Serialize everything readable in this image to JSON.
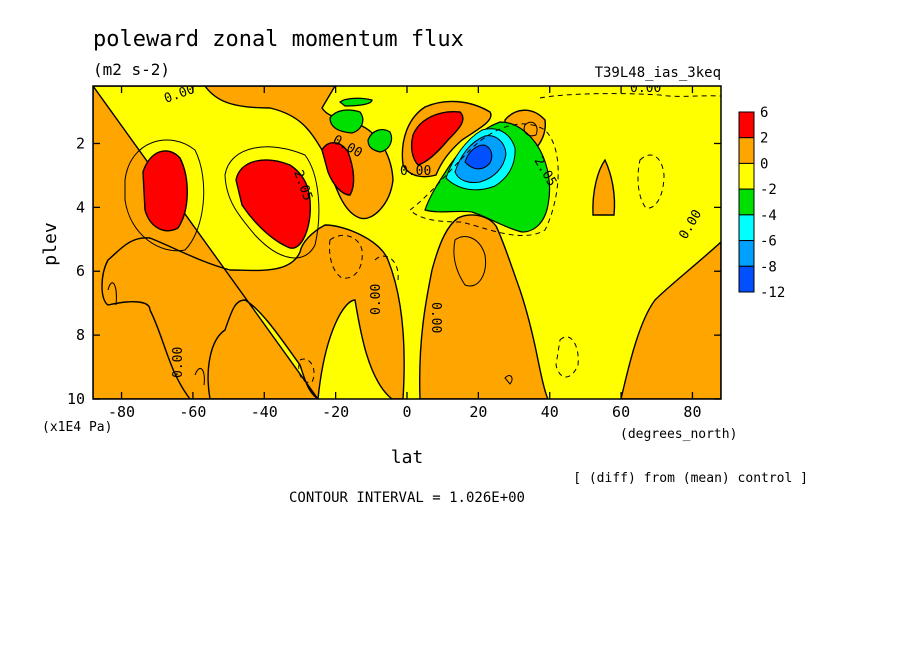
{
  "chart_data": {
    "type": "contour",
    "title": "poleward zonal momentum flux",
    "units": "(m2 s-2)",
    "run_label": "T39L48_ias_3keq",
    "xlabel": "lat",
    "xunits": "(degrees_north)",
    "ylabel": "plev",
    "yunits": "(x1E4 Pa)",
    "xlim": [
      -88,
      88
    ],
    "ylim": [
      10,
      0.2
    ],
    "xticks": [
      -80,
      -60,
      -40,
      -20,
      0,
      20,
      40,
      60,
      80
    ],
    "yticks": [
      2,
      4,
      6,
      8,
      10
    ],
    "subtitle": "[ (diff) from (mean) control ]",
    "contour_interval": "CONTOUR INTERVAL = 1.026E+00",
    "contour_labels": [
      "0.00",
      "0.00",
      "0.00",
      "0.00",
      "0.00",
      "0.00",
      "0.00",
      "0.00",
      "2.05",
      "2.05"
    ],
    "colorbar": {
      "levels": [
        "6",
        "2",
        "0",
        "-2",
        "-4",
        "-6",
        "-8",
        "-12"
      ],
      "colors": [
        "#ff0000",
        "#ffa500",
        "#ffff00",
        "#00e000",
        "#00ffff",
        "#00a0ff",
        "#0050ff"
      ]
    },
    "palette": {
      "positive_weak": "#ffa500",
      "positive_strong": "#ff0000",
      "near_zero": "#ffff00",
      "negative_weak": "#00e000",
      "negative_mid": "#00ffff",
      "negative_strong": "#00a0ff",
      "negative_max": "#0050ff"
    },
    "features": [
      {
        "type": "max",
        "lat": -68,
        "plev": 3.0,
        "value": 2.5
      },
      {
        "type": "max",
        "lat": -36,
        "plev": 3.7,
        "value": 2.8
      },
      {
        "type": "max",
        "lat": -18,
        "plev": 2.5,
        "value": 2.3
      },
      {
        "type": "max",
        "lat": 5,
        "plev": 1.9,
        "value": 2.6
      },
      {
        "type": "min",
        "lat": 20,
        "plev": 2.5,
        "value": -8.5
      },
      {
        "type": "min",
        "lat": 35,
        "plev": 3.8,
        "value": -3.0
      },
      {
        "type": "min",
        "lat": -15,
        "plev": 1.2,
        "value": -2.5
      },
      {
        "type": "min",
        "lat": -5,
        "plev": 1.6,
        "value": -2.2
      }
    ]
  }
}
